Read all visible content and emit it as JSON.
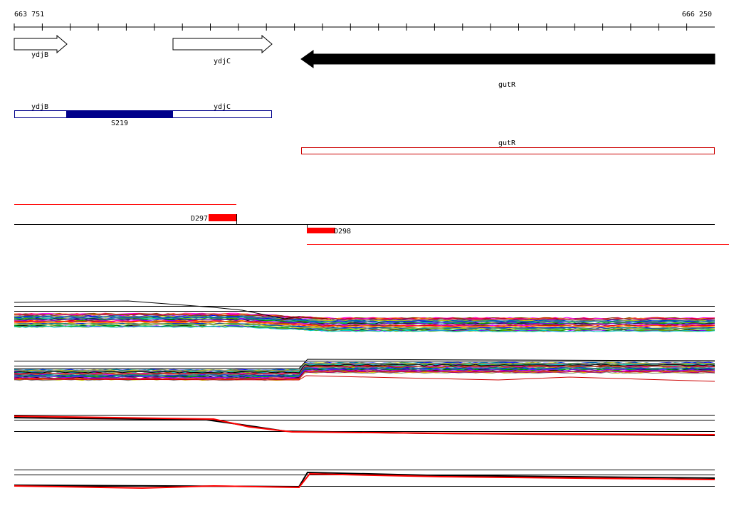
{
  "coordinates": {
    "start": "663 751",
    "end": "666 250"
  },
  "genes": [
    {
      "name": "ydjB",
      "strand": "+",
      "style": "outline"
    },
    {
      "name": "ydjC",
      "strand": "+",
      "style": "outline"
    },
    {
      "name": "gutR",
      "strand": "-",
      "style": "filled"
    }
  ],
  "transcript_features": [
    {
      "segments": [
        "ydjB",
        "S219",
        "ydjC"
      ],
      "color": "#00008b",
      "highlight": "S219"
    },
    {
      "segments": [
        "gutR"
      ],
      "color": "#cc0000"
    }
  ],
  "small_features": [
    {
      "name": "D297",
      "color": "#ff0000"
    },
    {
      "name": "D298",
      "color": "#ff0000"
    }
  ],
  "colors": {
    "axis": "#000000",
    "gene_fill": "#ffffff",
    "gene_filled": "#000000",
    "s219": "#00008b",
    "feature_red": "#ff0000",
    "track_line": "#000000"
  },
  "icons": {
    "forward_gene": "right-arrow-icon",
    "reverse_gene": "left-arrow-icon"
  },
  "tracks": [
    {
      "id": "expression-positive",
      "type": "multi-line"
    },
    {
      "id": "expression-negative",
      "type": "multi-line"
    },
    {
      "id": "tiling-positive",
      "type": "two-line"
    },
    {
      "id": "tiling-negative",
      "type": "two-line"
    }
  ]
}
